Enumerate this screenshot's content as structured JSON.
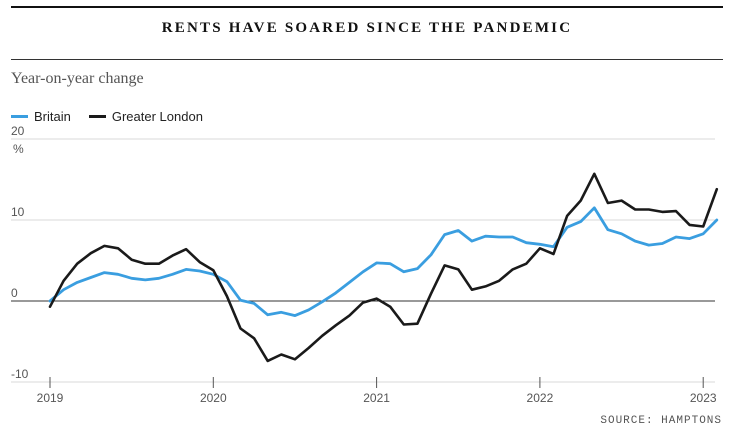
{
  "colors": {
    "britain": "#3a9ee0",
    "london": "#1a1a1a"
  },
  "chart_data": {
    "type": "line",
    "title": "RENTS HAVE SOARED SINCE THE PANDEMIC",
    "subtitle": "Year-on-year change",
    "unit": "%",
    "source": "SOURCE: HAMPTONS",
    "ylim": [
      -10,
      20
    ],
    "yticks": [
      20,
      10,
      0,
      -10
    ],
    "xticks": [
      "2019",
      "2020",
      "2021",
      "2022",
      "2023"
    ],
    "x": [
      "2019-01",
      "2019-02",
      "2019-03",
      "2019-04",
      "2019-05",
      "2019-06",
      "2019-07",
      "2019-08",
      "2019-09",
      "2019-10",
      "2019-11",
      "2019-12",
      "2020-01",
      "2020-02",
      "2020-03",
      "2020-04",
      "2020-05",
      "2020-06",
      "2020-07",
      "2020-08",
      "2020-09",
      "2020-10",
      "2020-11",
      "2020-12",
      "2021-01",
      "2021-02",
      "2021-03",
      "2021-04",
      "2021-05",
      "2021-06",
      "2021-07",
      "2021-08",
      "2021-09",
      "2021-10",
      "2021-11",
      "2021-12",
      "2022-01",
      "2022-02",
      "2022-03",
      "2022-04",
      "2022-05",
      "2022-06",
      "2022-07",
      "2022-08",
      "2022-09",
      "2022-10",
      "2022-11",
      "2022-12",
      "2023-01",
      "2023-02"
    ],
    "legend_position": "top-left",
    "series": [
      {
        "name": "Britain",
        "values": [
          0,
          1.4,
          2.3,
          2.9,
          3.5,
          3.3,
          2.8,
          2.6,
          2.8,
          3.3,
          3.9,
          3.7,
          3.3,
          2.4,
          0.1,
          -0.3,
          -1.7,
          -1.4,
          -1.8,
          -1.1,
          -0.1,
          1.0,
          2.3,
          3.6,
          4.7,
          4.6,
          3.6,
          4.0,
          5.7,
          8.2,
          8.7,
          7.4,
          8.0,
          7.9,
          7.9,
          7.2,
          7.0,
          6.7,
          9.1,
          9.8,
          11.5,
          8.8,
          8.3,
          7.4,
          6.9,
          7.1,
          7.9,
          7.7,
          8.3,
          10.0
        ]
      },
      {
        "name": "Greater London",
        "values": [
          -0.7,
          2.5,
          4.6,
          5.9,
          6.8,
          6.5,
          5.1,
          4.6,
          4.6,
          5.6,
          6.4,
          4.8,
          3.8,
          0.6,
          -3.4,
          -4.6,
          -7.4,
          -6.6,
          -7.2,
          -5.8,
          -4.3,
          -3.0,
          -1.8,
          -0.2,
          0.3,
          -0.7,
          -2.9,
          -2.8,
          0.9,
          4.4,
          3.9,
          1.4,
          1.8,
          2.5,
          3.9,
          4.6,
          6.5,
          5.8,
          10.5,
          12.4,
          15.7,
          12.1,
          12.4,
          11.3,
          11.3,
          11.0,
          11.1,
          9.4,
          9.2,
          13.8
        ]
      }
    ]
  }
}
